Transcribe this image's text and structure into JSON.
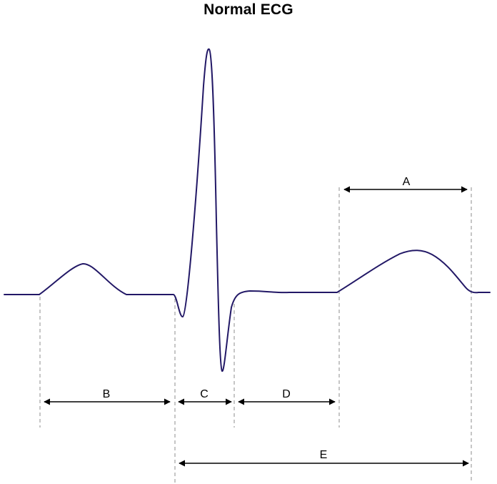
{
  "title": "Normal ECG",
  "colors": {
    "trace": "#221866",
    "guides": "#8c8c8c",
    "arrows": "#000000"
  },
  "intervals": [
    {
      "label": "A"
    },
    {
      "label": "B"
    },
    {
      "label": "C"
    },
    {
      "label": "D"
    },
    {
      "label": "E"
    }
  ]
}
